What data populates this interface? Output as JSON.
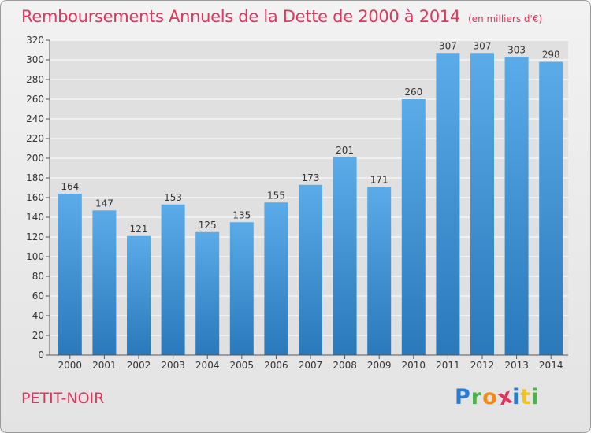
{
  "title": "Remboursements Annuels de la Dette de 2000 à 2014",
  "unit_label": "(en milliers d'€)",
  "commune": "PETIT-NOIR",
  "logo": {
    "letters": [
      "P",
      "r",
      "o",
      "x",
      "i",
      "t",
      "i"
    ],
    "colors": [
      "#2b7bd1",
      "#4cb34c",
      "#f08a1c",
      "#e2345d",
      "#2b7bd1",
      "#f2c41a",
      "#4cb34c"
    ]
  },
  "colors": {
    "bar_light": "#5aabe8",
    "bar_dark": "#2a79bb",
    "title": "#e2345d",
    "grid": "#ffffff",
    "axis": "#555555"
  },
  "chart_data": {
    "type": "bar",
    "title": "Remboursements Annuels de la Dette de 2000 à 2014",
    "ylabel": "en milliers d'€",
    "xlabel": "",
    "categories": [
      "2000",
      "2001",
      "2002",
      "2003",
      "2004",
      "2005",
      "2006",
      "2007",
      "2008",
      "2009",
      "2010",
      "2011",
      "2012",
      "2013",
      "2014"
    ],
    "values": [
      164,
      147,
      121,
      153,
      125,
      135,
      155,
      173,
      201,
      171,
      260,
      307,
      307,
      303,
      298
    ],
    "ylim": [
      0,
      320
    ],
    "yticks": [
      0,
      20,
      40,
      60,
      80,
      100,
      120,
      140,
      160,
      180,
      200,
      220,
      240,
      260,
      280,
      300,
      320
    ],
    "grid": true
  }
}
